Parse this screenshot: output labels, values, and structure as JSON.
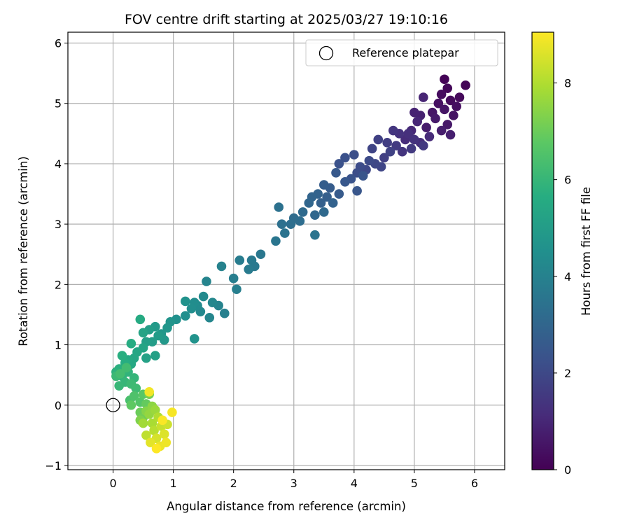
{
  "chart_data": {
    "type": "scatter",
    "title": "FOV centre drift starting at 2025/03/27 19:10:16",
    "xlabel": "Angular distance from reference (arcmin)",
    "ylabel": "Rotation from reference (arcmin)",
    "xlim": [
      -0.75,
      6.5
    ],
    "ylim": [
      -1.07,
      6.18
    ],
    "xticks": [
      0,
      1,
      2,
      3,
      4,
      5,
      6
    ],
    "yticks": [
      -1,
      0,
      1,
      2,
      3,
      4,
      5,
      6
    ],
    "xtick_labels": [
      "0",
      "1",
      "2",
      "3",
      "4",
      "5",
      "6"
    ],
    "ytick_labels": [
      "−1",
      "0",
      "1",
      "2",
      "3",
      "4",
      "5",
      "6"
    ],
    "grid": true,
    "legend": {
      "placement": "top-right",
      "entries": [
        "Reference platepar"
      ]
    },
    "colorbar": {
      "label": "Hours from first FF file",
      "range": [
        0,
        9.05
      ],
      "ticks": [
        0,
        2,
        4,
        6,
        8
      ],
      "tick_labels": [
        "0",
        "2",
        "4",
        "6",
        "8"
      ],
      "colormap": "viridis"
    },
    "reference_point": {
      "name": "Reference platepar",
      "x": 0,
      "y": 0
    },
    "series": [
      {
        "columns": [
          "x",
          "y",
          "hours"
        ],
        "points": [
          [
            5.5,
            5.4,
            0.05
          ],
          [
            5.85,
            5.3,
            0.1
          ],
          [
            5.55,
            5.25,
            0.15
          ],
          [
            5.75,
            5.1,
            0.2
          ],
          [
            5.6,
            5.05,
            0.25
          ],
          [
            5.45,
            5.15,
            0.3
          ],
          [
            5.7,
            4.95,
            0.35
          ],
          [
            5.4,
            5.0,
            0.4
          ],
          [
            5.65,
            4.8,
            0.45
          ],
          [
            5.5,
            4.9,
            0.5
          ],
          [
            5.3,
            4.85,
            0.55
          ],
          [
            5.55,
            4.65,
            0.6
          ],
          [
            5.35,
            4.75,
            0.65
          ],
          [
            5.2,
            4.6,
            0.7
          ],
          [
            5.45,
            4.55,
            0.75
          ],
          [
            5.6,
            4.48,
            0.8
          ],
          [
            5.1,
            4.8,
            0.85
          ],
          [
            5.0,
            4.85,
            0.9
          ],
          [
            5.15,
            5.1,
            0.95
          ],
          [
            5.05,
            4.7,
            1.0
          ],
          [
            4.95,
            4.55,
            1.05
          ],
          [
            5.25,
            4.45,
            1.1
          ],
          [
            4.85,
            4.4,
            1.15
          ],
          [
            5.1,
            4.35,
            1.2
          ],
          [
            4.9,
            4.5,
            1.25
          ],
          [
            4.75,
            4.5,
            1.3
          ],
          [
            5.0,
            4.4,
            1.35
          ],
          [
            4.8,
            4.2,
            1.4
          ],
          [
            4.65,
            4.55,
            1.45
          ],
          [
            5.15,
            4.3,
            1.5
          ],
          [
            4.95,
            4.25,
            1.55
          ],
          [
            4.7,
            4.3,
            1.6
          ],
          [
            4.55,
            4.35,
            1.65
          ],
          [
            4.5,
            4.1,
            1.7
          ],
          [
            4.4,
            4.4,
            1.75
          ],
          [
            4.6,
            4.2,
            1.8
          ],
          [
            4.3,
            4.25,
            1.85
          ],
          [
            4.45,
            3.95,
            1.9
          ],
          [
            4.35,
            4.0,
            1.95
          ],
          [
            4.2,
            3.9,
            2.0
          ],
          [
            4.25,
            4.05,
            2.05
          ],
          [
            4.1,
            3.95,
            2.1
          ],
          [
            4.05,
            3.85,
            2.15
          ],
          [
            4.0,
            4.15,
            2.2
          ],
          [
            3.85,
            4.1,
            2.25
          ],
          [
            3.75,
            4.0,
            2.3
          ],
          [
            3.95,
            3.75,
            2.35
          ],
          [
            4.15,
            3.8,
            2.4
          ],
          [
            4.05,
            3.55,
            2.45
          ],
          [
            3.85,
            3.7,
            2.5
          ],
          [
            3.7,
            3.85,
            2.55
          ],
          [
            3.75,
            3.5,
            2.6
          ],
          [
            3.6,
            3.6,
            2.65
          ],
          [
            3.5,
            3.65,
            2.7
          ],
          [
            3.55,
            3.45,
            2.75
          ],
          [
            3.45,
            3.35,
            2.8
          ],
          [
            3.65,
            3.35,
            2.85
          ],
          [
            3.4,
            3.5,
            2.9
          ],
          [
            3.3,
            3.45,
            2.95
          ],
          [
            3.25,
            3.35,
            3.0
          ],
          [
            3.35,
            3.15,
            3.05
          ],
          [
            3.5,
            3.2,
            3.1
          ],
          [
            3.15,
            3.2,
            3.15
          ],
          [
            3.0,
            3.1,
            3.2
          ],
          [
            3.1,
            3.05,
            3.25
          ],
          [
            2.95,
            3.0,
            3.3
          ],
          [
            2.8,
            3.0,
            3.35
          ],
          [
            2.75,
            3.28,
            3.4
          ],
          [
            2.85,
            2.85,
            3.45
          ],
          [
            3.35,
            2.82,
            3.5
          ],
          [
            2.7,
            2.72,
            3.55
          ],
          [
            2.45,
            2.5,
            3.6
          ],
          [
            2.35,
            2.3,
            3.65
          ],
          [
            2.3,
            2.4,
            3.7
          ],
          [
            2.25,
            2.25,
            3.75
          ],
          [
            2.1,
            2.4,
            3.8
          ],
          [
            2.0,
            2.1,
            3.85
          ],
          [
            2.05,
            1.92,
            3.9
          ],
          [
            1.85,
            1.52,
            3.95
          ],
          [
            1.8,
            2.3,
            4.0
          ],
          [
            1.75,
            1.65,
            4.05
          ],
          [
            1.55,
            2.05,
            4.1
          ],
          [
            1.6,
            1.45,
            4.15
          ],
          [
            1.65,
            1.7,
            4.2
          ],
          [
            1.45,
            1.55,
            4.25
          ],
          [
            1.5,
            1.8,
            4.3
          ],
          [
            1.4,
            1.65,
            4.35
          ],
          [
            1.35,
            1.7,
            4.4
          ],
          [
            1.3,
            1.6,
            4.45
          ],
          [
            1.2,
            1.48,
            4.5
          ],
          [
            1.05,
            1.42,
            4.55
          ],
          [
            1.2,
            1.72,
            4.6
          ],
          [
            1.35,
            1.1,
            4.65
          ],
          [
            0.95,
            1.38,
            4.7
          ],
          [
            0.9,
            1.28,
            4.75
          ],
          [
            0.8,
            1.18,
            4.8
          ],
          [
            0.85,
            1.08,
            4.85
          ],
          [
            0.7,
            1.3,
            4.9
          ],
          [
            0.75,
            1.15,
            4.95
          ],
          [
            0.65,
            1.05,
            5.0
          ],
          [
            0.6,
            1.25,
            5.05
          ],
          [
            0.55,
            1.05,
            5.1
          ],
          [
            0.7,
            0.82,
            5.15
          ],
          [
            0.55,
            0.78,
            5.2
          ],
          [
            0.5,
            1.2,
            5.25
          ],
          [
            0.5,
            0.95,
            5.3
          ],
          [
            0.4,
            0.88,
            5.35
          ],
          [
            0.35,
            0.78,
            5.4
          ],
          [
            0.3,
            0.68,
            5.45
          ],
          [
            0.25,
            0.75,
            5.5
          ],
          [
            0.45,
            1.42,
            5.55
          ],
          [
            0.3,
            1.02,
            5.6
          ],
          [
            0.2,
            0.7,
            5.65
          ],
          [
            0.15,
            0.82,
            5.7
          ],
          [
            0.1,
            0.6,
            5.75
          ],
          [
            0.05,
            0.55,
            5.8
          ],
          [
            0.15,
            0.48,
            5.85
          ],
          [
            0.25,
            0.55,
            5.9
          ],
          [
            0.35,
            0.45,
            5.95
          ],
          [
            0.2,
            0.38,
            6.0
          ],
          [
            0.1,
            0.32,
            6.05
          ],
          [
            0.05,
            0.48,
            6.1
          ],
          [
            0.3,
            0.35,
            6.15
          ],
          [
            0.38,
            0.28,
            6.2
          ],
          [
            0.22,
            0.62,
            6.25
          ],
          [
            0.12,
            0.52,
            6.3
          ],
          [
            0.28,
            0.08,
            6.4
          ],
          [
            0.35,
            0.15,
            6.5
          ],
          [
            0.45,
            0.05,
            6.6
          ],
          [
            0.5,
            0.18,
            6.7
          ],
          [
            0.3,
            0.0,
            6.8
          ],
          [
            0.55,
            0.02,
            6.9
          ],
          [
            0.45,
            -0.12,
            7.0
          ],
          [
            0.5,
            -0.2,
            7.1
          ],
          [
            0.6,
            0.18,
            7.2
          ],
          [
            0.45,
            -0.25,
            7.3
          ],
          [
            0.55,
            -0.1,
            7.4
          ],
          [
            0.65,
            -0.02,
            7.5
          ],
          [
            0.6,
            -0.15,
            7.6
          ],
          [
            0.7,
            -0.08,
            7.7
          ],
          [
            0.5,
            -0.3,
            7.8
          ],
          [
            0.65,
            -0.3,
            7.9
          ],
          [
            0.75,
            -0.2,
            8.0
          ],
          [
            0.68,
            -0.42,
            8.1
          ],
          [
            0.55,
            -0.5,
            8.2
          ],
          [
            0.8,
            -0.35,
            8.3
          ],
          [
            0.9,
            -0.32,
            8.4
          ],
          [
            0.72,
            -0.55,
            8.5
          ],
          [
            0.85,
            -0.48,
            8.6
          ],
          [
            0.62,
            -0.62,
            8.7
          ],
          [
            0.78,
            -0.68,
            8.8
          ],
          [
            0.88,
            -0.62,
            8.85
          ],
          [
            0.6,
            0.22,
            8.9
          ],
          [
            0.98,
            -0.12,
            8.95
          ],
          [
            0.82,
            -0.25,
            9.0
          ],
          [
            0.72,
            -0.72,
            9.05
          ]
        ]
      }
    ]
  }
}
